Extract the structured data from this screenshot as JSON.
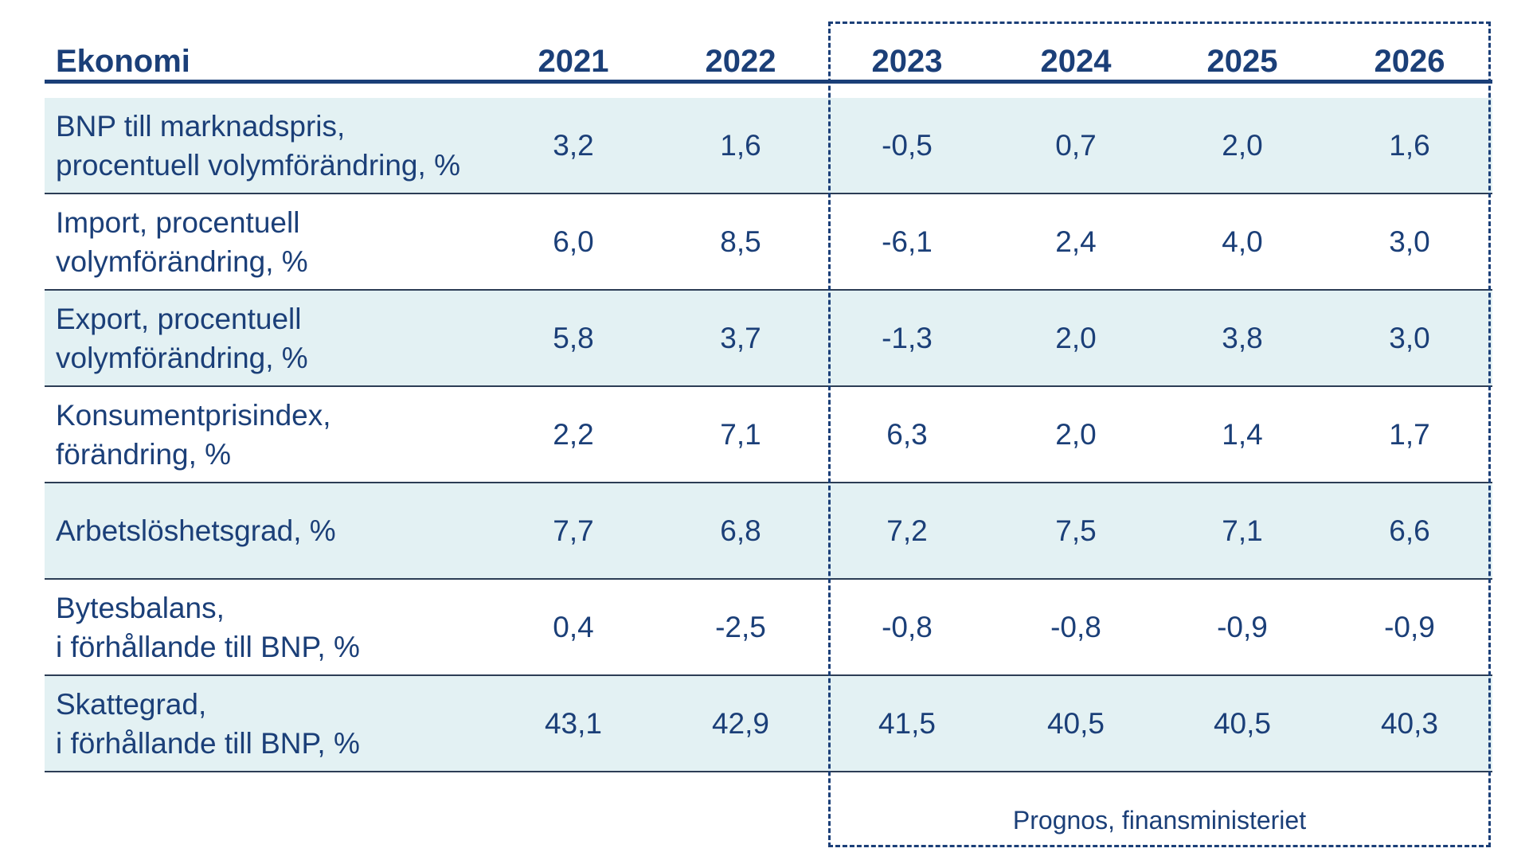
{
  "chart_data": {
    "type": "table",
    "header_label": "Ekonomi",
    "columns": [
      "2021",
      "2022",
      "2023",
      "2024",
      "2025",
      "2026"
    ],
    "forecast_note": "Prognos, finansministeriet",
    "rows": [
      {
        "label": "BNP till marknadspris,\nprocentuell volymförändring, %",
        "values": [
          "3,2",
          "1,6",
          "-0,5",
          "0,7",
          "2,0",
          "1,6"
        ]
      },
      {
        "label": "Import, procentuell\nvolymförändring, %",
        "values": [
          "6,0",
          "8,5",
          "-6,1",
          "2,4",
          "4,0",
          "3,0"
        ]
      },
      {
        "label": "Export, procentuell\nvolymförändring, %",
        "values": [
          "5,8",
          "3,7",
          "-1,3",
          "2,0",
          "3,8",
          "3,0"
        ]
      },
      {
        "label": "Konsumentprisindex,\nförändring, %",
        "values": [
          "2,2",
          "7,1",
          "6,3",
          "2,0",
          "1,4",
          "1,7"
        ]
      },
      {
        "label": "Arbetslöshetsgrad, %",
        "values": [
          "7,7",
          "6,8",
          "7,2",
          "7,5",
          "7,1",
          "6,6"
        ]
      },
      {
        "label": "Bytesbalans,\ni förhållande till BNP, %",
        "values": [
          "0,4",
          "-2,5",
          "-0,8",
          "-0,8",
          "-0,9",
          "-0,9"
        ]
      },
      {
        "label": "Skattegrad,\ni förhållande till BNP, %",
        "values": [
          "43,1",
          "42,9",
          "41,5",
          "40,5",
          "40,5",
          "40,3"
        ]
      }
    ]
  }
}
